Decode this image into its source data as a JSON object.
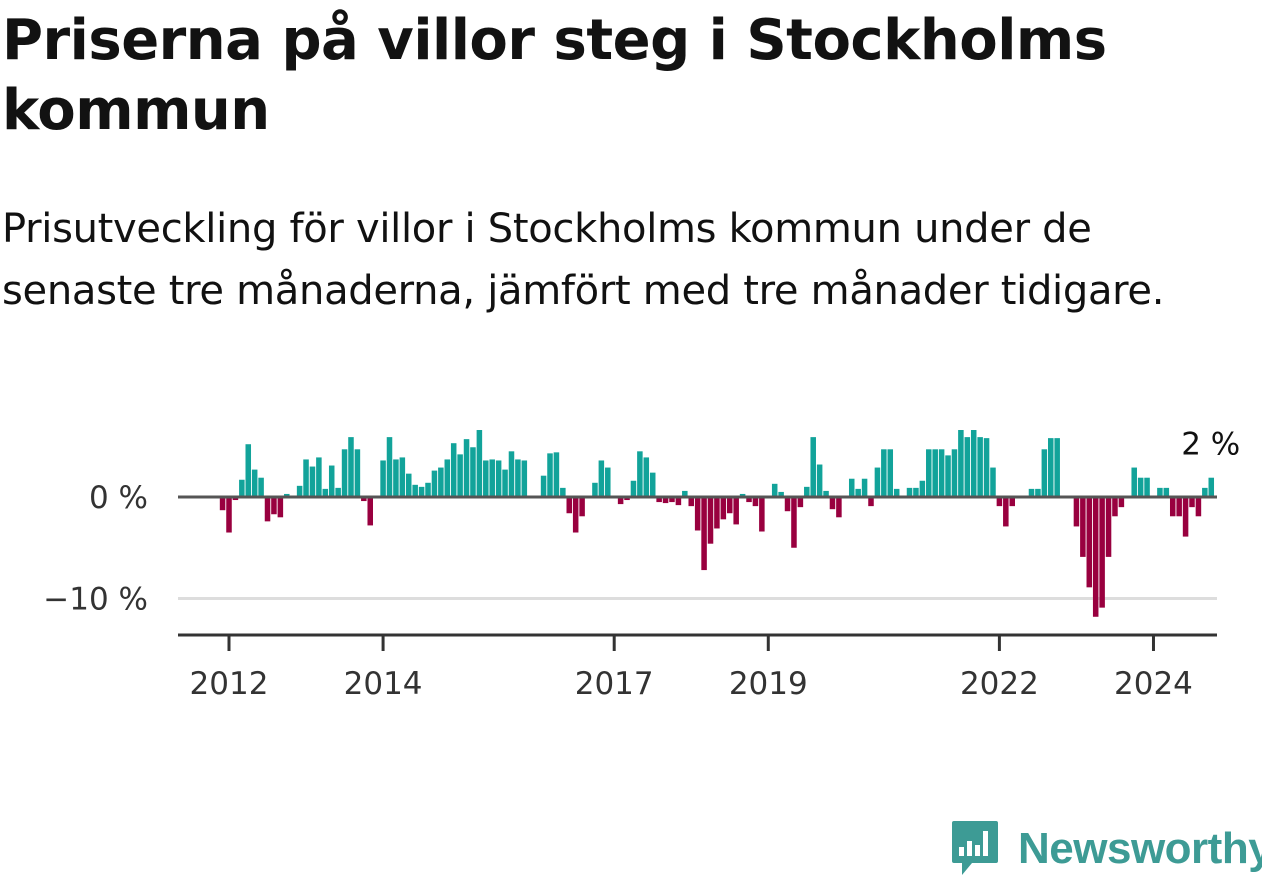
{
  "title": "Priserna på villor steg i Stockholms kommun",
  "subtitle": "Prisutveckling för villor i Stockholms kommun under de senaste tre månaderna, jämfört med tre månader tidigare.",
  "brand": {
    "name": "Newsworthy",
    "icon": "newsworthy-logo-icon",
    "color": "#3d9b95"
  },
  "colors": {
    "positive": "#12a39a",
    "negative": "#99003f",
    "zero_line": "#555555",
    "grid": "#dddddd",
    "axis": "#333333"
  },
  "chart_data": {
    "type": "bar",
    "title": "Priserna på villor steg i Stockholms kommun",
    "subtitle": "Prisutveckling för villor i Stockholms kommun under de senaste tre månaderna, jämfört med tre månader tidigare.",
    "xlabel": "",
    "ylabel": "",
    "unit": "%",
    "ylim": [
      -13,
      8
    ],
    "yticks": [
      0,
      -10
    ],
    "ytick_labels": [
      "0 %",
      "−10 %"
    ],
    "grid": true,
    "xticks": [
      2012,
      2014,
      2017,
      2019,
      2022,
      2024
    ],
    "xtick_labels": [
      "2012",
      "2014",
      "2017",
      "2019",
      "2022",
      "2024"
    ],
    "annotation": {
      "text": "2 %",
      "target": "last"
    },
    "series": [
      {
        "start_year": 2011,
        "start_month": 12,
        "frequency": "monthly",
        "values": [
          -1.3,
          -3.5,
          -0.3,
          1.7,
          5.2,
          2.7,
          1.9,
          -2.4,
          -1.7,
          -2.0,
          0.3,
          0.1,
          1.1,
          3.7,
          3.0,
          3.9,
          0.8,
          3.1,
          0.9,
          4.7,
          5.9,
          4.7,
          -0.4,
          -2.8,
          0.0,
          3.6,
          5.9,
          3.7,
          3.9,
          2.3,
          1.2,
          1.0,
          1.4,
          2.6,
          2.9,
          3.7,
          5.3,
          4.2,
          5.7,
          4.9,
          6.6,
          3.6,
          3.7,
          3.6,
          2.7,
          4.5,
          3.7,
          3.6,
          0.0,
          0.0,
          2.1,
          4.3,
          4.4,
          0.9,
          -1.6,
          -3.5,
          -1.9,
          0.0,
          1.4,
          3.6,
          2.9,
          0.1,
          -0.7,
          -0.3,
          1.6,
          4.5,
          3.9,
          2.4,
          -0.5,
          -0.6,
          -0.5,
          -0.8,
          0.6,
          -0.9,
          -3.3,
          -7.2,
          -4.6,
          -3.1,
          -2.2,
          -1.6,
          -2.7,
          0.3,
          -0.5,
          -0.9,
          -3.4,
          0.0,
          1.3,
          0.5,
          -1.4,
          -5.0,
          -1.0,
          1.0,
          5.9,
          3.2,
          0.6,
          -1.2,
          -2.0,
          0.0,
          1.8,
          0.8,
          1.8,
          -0.9,
          2.9,
          4.7,
          4.7,
          0.8,
          0.0,
          0.9,
          0.9,
          1.6,
          4.7,
          4.7,
          4.7,
          4.1,
          4.7,
          6.6,
          5.9,
          6.6,
          5.9,
          5.8,
          2.9,
          -0.9,
          -2.9,
          -0.9,
          0.0,
          0.0,
          0.8,
          0.8,
          4.7,
          5.8,
          5.8,
          0.0,
          0.0,
          -2.9,
          -5.9,
          -8.9,
          -11.8,
          -10.9,
          -5.9,
          -1.9,
          -1.0,
          0.0,
          2.9,
          1.9,
          1.9,
          0.0,
          0.9,
          0.9,
          -1.9,
          -1.9,
          -3.9,
          -1.0,
          -1.9,
          0.9,
          1.9
        ]
      }
    ]
  }
}
